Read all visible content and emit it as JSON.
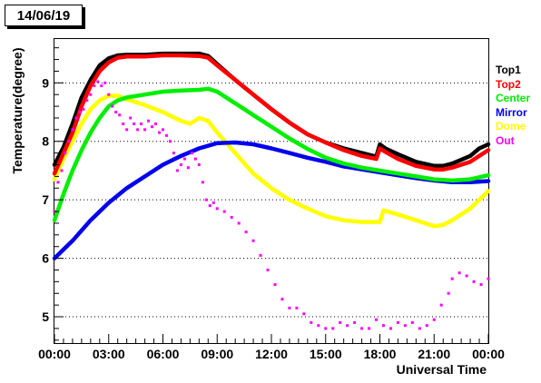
{
  "chart_data": {
    "type": "line",
    "title": "14/06/19",
    "xlabel": "Universal Time",
    "ylabel": "Temperature(degree)",
    "xlim": [
      0,
      24
    ],
    "ylim": [
      4.55,
      9.75
    ],
    "x_ticks": [
      0,
      3,
      6,
      9,
      12,
      15,
      18,
      21,
      24
    ],
    "x_tick_labels": [
      "00:00",
      "03:00",
      "06:00",
      "09:00",
      "12:00",
      "15:00",
      "18:00",
      "21:00",
      "00:00"
    ],
    "y_ticks": [
      5,
      6,
      7,
      8,
      9
    ],
    "y_tick_labels": [
      "5",
      "6",
      "7",
      "8",
      "9"
    ],
    "grid": "horizontal-dotted",
    "legend_position": "right",
    "series": [
      {
        "name": "Top1",
        "color": "#000000",
        "style": "thick",
        "points": [
          [
            0,
            7.6
          ],
          [
            0.5,
            7.9
          ],
          [
            1,
            8.3
          ],
          [
            1.5,
            8.75
          ],
          [
            2,
            9.05
          ],
          [
            2.5,
            9.3
          ],
          [
            3,
            9.42
          ],
          [
            3.5,
            9.47
          ],
          [
            4,
            9.48
          ],
          [
            5,
            9.48
          ],
          [
            6,
            9.5
          ],
          [
            7,
            9.5
          ],
          [
            8,
            9.5
          ],
          [
            8.5,
            9.46
          ],
          [
            9,
            9.32
          ],
          [
            10,
            9.05
          ],
          [
            11,
            8.8
          ],
          [
            12,
            8.55
          ],
          [
            13,
            8.32
          ],
          [
            14,
            8.12
          ],
          [
            15,
            7.98
          ],
          [
            16,
            7.88
          ],
          [
            17,
            7.8
          ],
          [
            17.8,
            7.74
          ],
          [
            18,
            7.95
          ],
          [
            18.3,
            7.88
          ],
          [
            19,
            7.78
          ],
          [
            20,
            7.65
          ],
          [
            21,
            7.58
          ],
          [
            21.5,
            7.58
          ],
          [
            22,
            7.62
          ],
          [
            23,
            7.75
          ],
          [
            23.5,
            7.88
          ],
          [
            24,
            7.95
          ]
        ]
      },
      {
        "name": "Top2",
        "color": "#ff0000",
        "style": "thick",
        "points": [
          [
            0,
            7.45
          ],
          [
            0.5,
            7.8
          ],
          [
            1,
            8.15
          ],
          [
            1.5,
            8.6
          ],
          [
            2,
            8.95
          ],
          [
            2.5,
            9.2
          ],
          [
            3,
            9.35
          ],
          [
            3.5,
            9.43
          ],
          [
            4,
            9.45
          ],
          [
            5,
            9.45
          ],
          [
            6,
            9.47
          ],
          [
            7,
            9.47
          ],
          [
            8,
            9.46
          ],
          [
            8.5,
            9.43
          ],
          [
            9,
            9.3
          ],
          [
            10,
            9.05
          ],
          [
            11,
            8.8
          ],
          [
            12,
            8.55
          ],
          [
            13,
            8.32
          ],
          [
            14,
            8.12
          ],
          [
            15,
            7.98
          ],
          [
            16,
            7.85
          ],
          [
            17,
            7.75
          ],
          [
            17.8,
            7.7
          ],
          [
            18,
            7.88
          ],
          [
            18.3,
            7.82
          ],
          [
            19,
            7.7
          ],
          [
            20,
            7.58
          ],
          [
            21,
            7.52
          ],
          [
            21.5,
            7.52
          ],
          [
            22,
            7.55
          ],
          [
            23,
            7.65
          ],
          [
            23.5,
            7.75
          ],
          [
            24,
            7.85
          ]
        ]
      },
      {
        "name": "Center",
        "color": "#00ee00",
        "style": "thick",
        "points": [
          [
            0,
            6.65
          ],
          [
            0.5,
            7.1
          ],
          [
            1,
            7.5
          ],
          [
            1.5,
            7.85
          ],
          [
            2,
            8.15
          ],
          [
            2.5,
            8.4
          ],
          [
            3,
            8.6
          ],
          [
            3.5,
            8.7
          ],
          [
            4,
            8.75
          ],
          [
            5,
            8.8
          ],
          [
            6,
            8.85
          ],
          [
            7,
            8.87
          ],
          [
            8,
            8.88
          ],
          [
            8.5,
            8.9
          ],
          [
            9,
            8.85
          ],
          [
            10,
            8.65
          ],
          [
            11,
            8.45
          ],
          [
            12,
            8.25
          ],
          [
            13,
            8.05
          ],
          [
            14,
            7.87
          ],
          [
            15,
            7.72
          ],
          [
            16,
            7.62
          ],
          [
            17,
            7.55
          ],
          [
            18,
            7.5
          ],
          [
            19,
            7.45
          ],
          [
            20,
            7.4
          ],
          [
            21,
            7.35
          ],
          [
            22,
            7.33
          ],
          [
            23,
            7.35
          ],
          [
            24,
            7.42
          ]
        ]
      },
      {
        "name": "Mirror",
        "color": "#0000ee",
        "style": "thick",
        "points": [
          [
            0,
            6.0
          ],
          [
            1,
            6.3
          ],
          [
            2,
            6.65
          ],
          [
            3,
            6.95
          ],
          [
            4,
            7.2
          ],
          [
            5,
            7.4
          ],
          [
            6,
            7.6
          ],
          [
            7,
            7.75
          ],
          [
            8,
            7.88
          ],
          [
            9,
            7.97
          ],
          [
            10,
            7.98
          ],
          [
            11,
            7.95
          ],
          [
            12,
            7.88
          ],
          [
            13,
            7.8
          ],
          [
            14,
            7.72
          ],
          [
            15,
            7.65
          ],
          [
            16,
            7.57
          ],
          [
            17,
            7.52
          ],
          [
            18,
            7.47
          ],
          [
            19,
            7.42
          ],
          [
            20,
            7.37
          ],
          [
            21,
            7.33
          ],
          [
            22,
            7.3
          ],
          [
            23,
            7.3
          ],
          [
            24,
            7.32
          ]
        ]
      },
      {
        "name": "Dome",
        "color": "#ffff00",
        "style": "thick",
        "points": [
          [
            0,
            7.35
          ],
          [
            0.5,
            7.7
          ],
          [
            1,
            8.0
          ],
          [
            1.5,
            8.3
          ],
          [
            2,
            8.55
          ],
          [
            2.5,
            8.7
          ],
          [
            3,
            8.78
          ],
          [
            3.5,
            8.78
          ],
          [
            4,
            8.72
          ],
          [
            5,
            8.62
          ],
          [
            6,
            8.5
          ],
          [
            7,
            8.35
          ],
          [
            7.5,
            8.3
          ],
          [
            8,
            8.4
          ],
          [
            8.5,
            8.35
          ],
          [
            9,
            8.15
          ],
          [
            10,
            7.8
          ],
          [
            11,
            7.45
          ],
          [
            12,
            7.2
          ],
          [
            13,
            7.0
          ],
          [
            14,
            6.85
          ],
          [
            15,
            6.72
          ],
          [
            16,
            6.65
          ],
          [
            17,
            6.62
          ],
          [
            18,
            6.62
          ],
          [
            18.2,
            6.82
          ],
          [
            19,
            6.75
          ],
          [
            20,
            6.65
          ],
          [
            21,
            6.55
          ],
          [
            21.5,
            6.57
          ],
          [
            22,
            6.65
          ],
          [
            23,
            6.85
          ],
          [
            24,
            7.15
          ]
        ]
      },
      {
        "name": "Out",
        "color": "#ff00ff",
        "style": "scatter",
        "points": [
          [
            0,
            6.8
          ],
          [
            0.2,
            7.3
          ],
          [
            0.4,
            7.5
          ],
          [
            0.6,
            7.8
          ],
          [
            0.8,
            8.0
          ],
          [
            1,
            8.2
          ],
          [
            1.2,
            8.4
          ],
          [
            1.4,
            8.5
          ],
          [
            1.6,
            8.55
          ],
          [
            1.8,
            8.7
          ],
          [
            2,
            8.8
          ],
          [
            2.2,
            8.95
          ],
          [
            2.4,
            9.02
          ],
          [
            2.6,
            8.95
          ],
          [
            2.8,
            9.0
          ],
          [
            3,
            8.8
          ],
          [
            3.2,
            8.6
          ],
          [
            3.4,
            8.5
          ],
          [
            3.6,
            8.45
          ],
          [
            3.8,
            8.3
          ],
          [
            4,
            8.2
          ],
          [
            4.2,
            8.4
          ],
          [
            4.4,
            8.3
          ],
          [
            4.6,
            8.2
          ],
          [
            4.8,
            8.3
          ],
          [
            5,
            8.2
          ],
          [
            5.2,
            8.35
          ],
          [
            5.4,
            8.25
          ],
          [
            5.6,
            8.3
          ],
          [
            5.8,
            8.15
          ],
          [
            6,
            8.2
          ],
          [
            6.2,
            8.1
          ],
          [
            6.4,
            8.0
          ],
          [
            6.6,
            7.8
          ],
          [
            6.8,
            7.5
          ],
          [
            7,
            7.6
          ],
          [
            7.2,
            7.7
          ],
          [
            7.4,
            7.55
          ],
          [
            7.6,
            7.8
          ],
          [
            7.8,
            7.7
          ],
          [
            8,
            7.6
          ],
          [
            8.2,
            7.3
          ],
          [
            8.4,
            7.0
          ],
          [
            8.6,
            6.9
          ],
          [
            8.8,
            6.95
          ],
          [
            9,
            6.85
          ],
          [
            9.4,
            6.8
          ],
          [
            9.8,
            6.7
          ],
          [
            10.2,
            6.6
          ],
          [
            10.6,
            6.45
          ],
          [
            11,
            6.3
          ],
          [
            11.4,
            6.05
          ],
          [
            11.8,
            5.8
          ],
          [
            12.2,
            5.55
          ],
          [
            12.6,
            5.3
          ],
          [
            13,
            5.15
          ],
          [
            13.4,
            5.15
          ],
          [
            13.8,
            5.05
          ],
          [
            14.2,
            4.9
          ],
          [
            14.6,
            4.85
          ],
          [
            15,
            4.8
          ],
          [
            15.4,
            4.8
          ],
          [
            15.8,
            4.9
          ],
          [
            16.2,
            4.85
          ],
          [
            16.6,
            4.9
          ],
          [
            17,
            4.8
          ],
          [
            17.4,
            4.8
          ],
          [
            17.8,
            4.95
          ],
          [
            18.2,
            4.85
          ],
          [
            18.6,
            4.8
          ],
          [
            19,
            4.9
          ],
          [
            19.4,
            4.85
          ],
          [
            19.8,
            4.9
          ],
          [
            20.2,
            4.8
          ],
          [
            20.6,
            4.85
          ],
          [
            21,
            4.95
          ],
          [
            21.4,
            5.2
          ],
          [
            21.8,
            5.4
          ],
          [
            22,
            5.65
          ],
          [
            22.4,
            5.75
          ],
          [
            22.8,
            5.7
          ],
          [
            23.2,
            5.6
          ],
          [
            23.6,
            5.55
          ],
          [
            24,
            5.65
          ]
        ]
      }
    ]
  }
}
